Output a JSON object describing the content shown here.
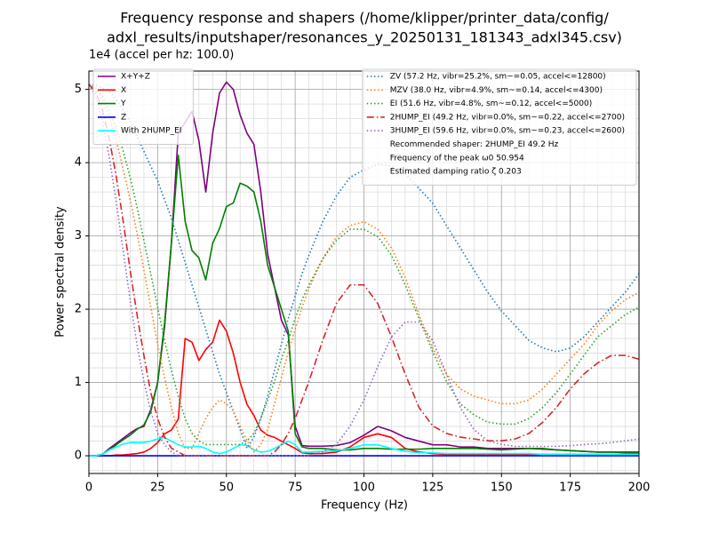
{
  "chart_data": {
    "type": "line",
    "title": [
      "Frequency response and shapers (/home/klipper/printer_data/config/",
      "adxl_results/inputshaper/resonances_y_20250131_181343_adxl345.csv)"
    ],
    "offset_text": "1e4 (accel per hz: 100.0)",
    "x_label": "Frequency (Hz)",
    "y_label": "Power spectral density",
    "xlim": [
      0,
      200
    ],
    "xticks": [
      0,
      25,
      50,
      75,
      100,
      125,
      150,
      175,
      200
    ],
    "xminorticks": [
      5,
      10,
      15,
      20,
      30,
      35,
      40,
      45,
      55,
      60,
      65,
      70,
      80,
      85,
      90,
      95,
      105,
      110,
      115,
      120,
      130,
      135,
      140,
      145,
      155,
      160,
      165,
      170,
      180,
      185,
      190,
      195
    ],
    "ylim": [
      -0.242,
      5.25
    ],
    "yticks": [
      0,
      1,
      2,
      3,
      4,
      5
    ],
    "yminorticks": [
      -0.2,
      0.2,
      0.4,
      0.6,
      0.8,
      1.2,
      1.4,
      1.6,
      1.8,
      2.2,
      2.4,
      2.6,
      2.8,
      3.2,
      3.4,
      3.6,
      3.8,
      4.2,
      4.4,
      4.6,
      4.8,
      5.2
    ],
    "y2lim": [
      -0.048,
      1.036
    ],
    "grid": true,
    "legend": "upper left",
    "legend2": "upper right",
    "x": [
      0,
      2.5,
      5,
      7.5,
      10,
      12.5,
      15,
      17.5,
      20,
      22.5,
      25,
      27.5,
      30,
      32.5,
      35,
      37.5,
      40,
      42.5,
      45,
      47.5,
      50,
      52.5,
      55,
      57.5,
      60,
      62.5,
      65,
      67.5,
      70,
      72.5,
      75,
      77.5,
      80,
      85,
      90,
      95,
      100,
      105,
      110,
      115,
      120,
      125,
      130,
      135,
      140,
      145,
      150,
      155,
      160,
      165,
      170,
      175,
      180,
      185,
      190,
      195,
      200
    ],
    "series": [
      {
        "name": "X+Y+Z",
        "color": "#800080",
        "linestyle": "solid",
        "axis": "y",
        "values": [
          0,
          0,
          0.02,
          0.1,
          0.17,
          0.24,
          0.31,
          0.37,
          0.4,
          0.63,
          1.0,
          1.75,
          2.9,
          4.4,
          4.55,
          4.7,
          4.3,
          3.6,
          4.4,
          4.95,
          5.1,
          5.0,
          4.65,
          4.4,
          4.25,
          3.6,
          2.75,
          2.3,
          1.85,
          1.65,
          0.4,
          0.14,
          0.13,
          0.13,
          0.14,
          0.18,
          0.28,
          0.4,
          0.34,
          0.25,
          0.2,
          0.15,
          0.15,
          0.12,
          0.12,
          0.1,
          0.1,
          0.1,
          0.1,
          0.09,
          0.08,
          0.07,
          0.06,
          0.05,
          0.05,
          0.05,
          0.05
        ]
      },
      {
        "name": "X",
        "color": "#ff0000",
        "linestyle": "solid",
        "axis": "y",
        "values": [
          0,
          0,
          0,
          0,
          0.01,
          0.01,
          0.02,
          0.03,
          0.05,
          0.1,
          0.18,
          0.3,
          0.35,
          0.5,
          1.6,
          1.55,
          1.3,
          1.45,
          1.55,
          1.85,
          1.7,
          1.4,
          1.0,
          0.7,
          0.55,
          0.35,
          0.28,
          0.25,
          0.2,
          0.15,
          0.1,
          0.04,
          0.03,
          0.03,
          0.05,
          0.12,
          0.25,
          0.3,
          0.25,
          0.1,
          0.05,
          0.03,
          0.02,
          0.02,
          0.02,
          0.02,
          0.02,
          0.02,
          0.02,
          0.02,
          0.02,
          0.02,
          0.02,
          0.02,
          0.02,
          0.02,
          0.02
        ]
      },
      {
        "name": "Y",
        "color": "#008000",
        "linestyle": "solid",
        "axis": "y",
        "values": [
          0,
          0,
          0.02,
          0.08,
          0.15,
          0.22,
          0.28,
          0.36,
          0.42,
          0.6,
          1.0,
          1.8,
          2.9,
          4.1,
          3.2,
          2.8,
          2.7,
          2.4,
          2.9,
          3.1,
          3.4,
          3.45,
          3.72,
          3.68,
          3.6,
          3.2,
          2.6,
          2.3,
          2.0,
          1.7,
          0.3,
          0.12,
          0.1,
          0.1,
          0.08,
          0.08,
          0.1,
          0.1,
          0.09,
          0.09,
          0.09,
          0.1,
          0.1,
          0.1,
          0.1,
          0.09,
          0.08,
          0.09,
          0.1,
          0.1,
          0.08,
          0.07,
          0.06,
          0.05,
          0.05,
          0.04,
          0.04
        ]
      },
      {
        "name": "Z",
        "color": "#0000ff",
        "linestyle": "solid",
        "axis": "y",
        "values": [
          0,
          0,
          0,
          0,
          0,
          0,
          0,
          0,
          0,
          0,
          0,
          0,
          0,
          0,
          0,
          0,
          0,
          0,
          0,
          0,
          0,
          0,
          0,
          0,
          0,
          0,
          0,
          0,
          0,
          0,
          0,
          0,
          0,
          0,
          0,
          0,
          0,
          0,
          0,
          0,
          0,
          0,
          0,
          0,
          0,
          0,
          0,
          0,
          0,
          0,
          0,
          0,
          0,
          0,
          0,
          0,
          0
        ]
      },
      {
        "name": "With 2HUMP_EI",
        "color": "#00ffff",
        "linestyle": "solid",
        "axis": "y",
        "values": [
          0,
          0,
          0.02,
          0.08,
          0.12,
          0.16,
          0.18,
          0.18,
          0.18,
          0.2,
          0.23,
          0.25,
          0.2,
          0.15,
          0.12,
          0.12,
          0.13,
          0.1,
          0.05,
          0.03,
          0.05,
          0.1,
          0.15,
          0.14,
          0.08,
          0.05,
          0.06,
          0.1,
          0.15,
          0.2,
          0.15,
          0.05,
          0.05,
          0.06,
          0.07,
          0.1,
          0.15,
          0.15,
          0.1,
          0.06,
          0.04,
          0.04,
          0.03,
          0.03,
          0.03,
          0.03,
          0.03,
          0.03,
          0.03,
          0.02,
          0.02,
          0.02,
          0.02,
          0.02,
          0.02,
          0.02,
          0.02
        ]
      },
      {
        "name": "ZV (57.2 Hz, vibr=25.2%, sm~=0.05, accel<=12800)",
        "color": "#1f77b4",
        "linestyle": "dotted",
        "axis": "y2",
        "values": [
          1,
          0.998,
          0.99,
          0.98,
          0.96,
          0.93,
          0.9,
          0.86,
          0.82,
          0.78,
          0.74,
          0.69,
          0.64,
          0.58,
          0.52,
          0.46,
          0.4,
          0.34,
          0.28,
          0.22,
          0.17,
          0.12,
          0.07,
          0.02,
          0.05,
          0.1,
          0.16,
          0.23,
          0.3,
          0.37,
          0.43,
          0.49,
          0.54,
          0.63,
          0.7,
          0.75,
          0.77,
          0.785,
          0.78,
          0.76,
          0.72,
          0.68,
          0.62,
          0.56,
          0.5,
          0.44,
          0.39,
          0.35,
          0.31,
          0.29,
          0.28,
          0.29,
          0.32,
          0.36,
          0.4,
          0.44,
          0.49
        ]
      },
      {
        "name": "MZV (38.0 Hz, vibr=4.9%, sm~=0.14, accel<=4300)",
        "color": "#ff7f0e",
        "linestyle": "dotted",
        "axis": "y2",
        "values": [
          1,
          0.99,
          0.96,
          0.91,
          0.85,
          0.77,
          0.69,
          0.6,
          0.5,
          0.4,
          0.3,
          0.21,
          0.13,
          0.06,
          0.02,
          0.02,
          0.06,
          0.1,
          0.13,
          0.15,
          0.14,
          0.12,
          0.08,
          0.04,
          0.01,
          0.03,
          0.07,
          0.14,
          0.21,
          0.28,
          0.34,
          0.4,
          0.45,
          0.53,
          0.59,
          0.62,
          0.63,
          0.61,
          0.56,
          0.48,
          0.38,
          0.29,
          0.22,
          0.18,
          0.16,
          0.15,
          0.14,
          0.14,
          0.15,
          0.18,
          0.22,
          0.26,
          0.3,
          0.35,
          0.39,
          0.42,
          0.44
        ]
      },
      {
        "name": "EI (51.6 Hz, vibr=4.8%, sm~=0.12, accel<=5000)",
        "color": "#2ca02c",
        "linestyle": "dotted",
        "axis": "y2",
        "values": [
          1,
          0.99,
          0.97,
          0.93,
          0.88,
          0.82,
          0.75,
          0.67,
          0.58,
          0.49,
          0.4,
          0.31,
          0.23,
          0.16,
          0.1,
          0.06,
          0.04,
          0.03,
          0.03,
          0.03,
          0.03,
          0.03,
          0.03,
          0.04,
          0.06,
          0.1,
          0.15,
          0.2,
          0.26,
          0.31,
          0.37,
          0.42,
          0.46,
          0.53,
          0.58,
          0.61,
          0.61,
          0.59,
          0.54,
          0.46,
          0.37,
          0.28,
          0.2,
          0.14,
          0.11,
          0.09,
          0.085,
          0.085,
          0.1,
          0.13,
          0.17,
          0.22,
          0.27,
          0.32,
          0.35,
          0.38,
          0.4
        ]
      },
      {
        "name": "2HUMP_EI (49.2 Hz, vibr=0.0%, sm~=0.22, accel<=2700)",
        "color": "#d62728",
        "linestyle": "dashdot",
        "axis": "y2",
        "values": [
          1,
          0.98,
          0.93,
          0.85,
          0.75,
          0.63,
          0.5,
          0.38,
          0.27,
          0.17,
          0.1,
          0.05,
          0.02,
          0.01,
          0,
          0,
          0,
          0,
          0,
          0,
          0,
          0,
          0,
          0,
          0,
          0,
          0,
          0.01,
          0.03,
          0.06,
          0.1,
          0.15,
          0.2,
          0.31,
          0.41,
          0.46,
          0.46,
          0.41,
          0.32,
          0.22,
          0.13,
          0.08,
          0.06,
          0.05,
          0.045,
          0.04,
          0.04,
          0.045,
          0.06,
          0.09,
          0.13,
          0.18,
          0.22,
          0.25,
          0.27,
          0.27,
          0.26
        ]
      },
      {
        "name": "3HUMP_EI (59.6 Hz, vibr=0.0%, sm~=0.23, accel<=2600)",
        "color": "#9467bd",
        "linestyle": "dotted",
        "axis": "y2",
        "values": [
          1,
          0.97,
          0.9,
          0.8,
          0.68,
          0.55,
          0.42,
          0.3,
          0.2,
          0.12,
          0.06,
          0.03,
          0.01,
          0,
          0,
          0,
          0,
          0,
          0,
          0,
          0,
          0,
          0,
          0,
          0,
          0,
          0,
          0,
          0,
          0,
          0,
          0,
          0,
          0.01,
          0.03,
          0.08,
          0.15,
          0.24,
          0.32,
          0.36,
          0.36,
          0.31,
          0.22,
          0.13,
          0.07,
          0.04,
          0.03,
          0.025,
          0.025,
          0.025,
          0.025,
          0.027,
          0.03,
          0.032,
          0.035,
          0.04,
          0.045
        ]
      }
    ],
    "legend_notes": [
      "Recommended shaper: 2HUMP_EI 49.2 Hz",
      "Frequency of the peak ω0 50.954",
      "Estimated damping ratio ζ 0.203"
    ]
  }
}
